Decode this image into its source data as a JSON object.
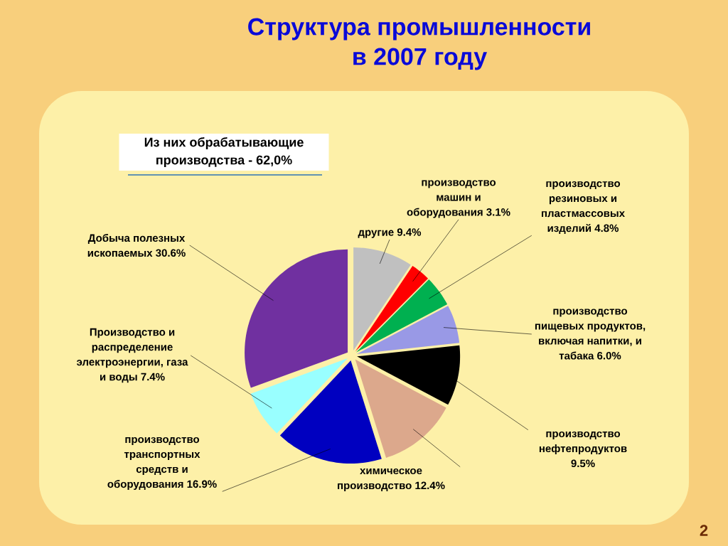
{
  "chart_data": {
    "type": "pie",
    "title": "Структура промышленности в 2007 году",
    "categories": [
      "другие 9.4%",
      "производство машин и оборудования 3.1%",
      "производство резиновых и пластмассовых изделий 4.8%",
      "производство пищевых продуктов, включая напитки, и табака 6.0%",
      "производство нефтепродуктов 9.5%",
      "химическое производство 12.4%",
      "производство транспортных средств и оборудования 16.9%",
      "Производство и распределение электроэнергии, газа и воды 7.4%",
      "Добыча полезных ископаемых 30.6%"
    ],
    "values": [
      9.4,
      3.1,
      4.8,
      6.0,
      9.5,
      12.4,
      16.9,
      7.4,
      30.6
    ],
    "colors": [
      "#c0c0c0",
      "#ff0000",
      "#00b050",
      "#9999e6",
      "#000000",
      "#dca88c",
      "#0000c0",
      "#99ffff",
      "#7030a0"
    ],
    "annotations": [
      "Из них обрабатывающие производства - 62,0%",
      "2"
    ]
  }
}
